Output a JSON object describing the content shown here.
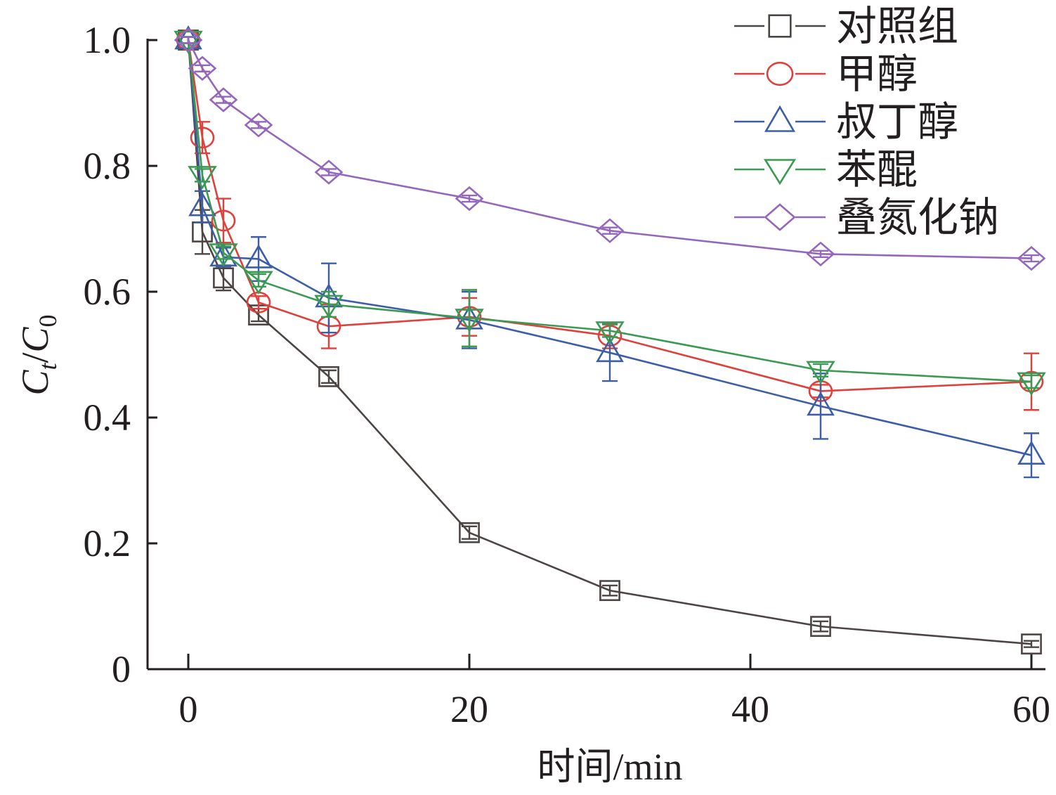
{
  "chart_data": {
    "type": "line",
    "title": "",
    "xlabel": "时间/min",
    "ylabel": {
      "c": "C",
      "t": "t",
      "slash": "/",
      "c0": "C",
      "zero": "0"
    },
    "xlim": [
      -3,
      61
    ],
    "ylim": [
      0,
      1.0
    ],
    "xticks": [
      0,
      20,
      40,
      60
    ],
    "xtick_labels": [
      "0",
      "20",
      "40",
      "60"
    ],
    "yticks": [
      0,
      0.2,
      0.4,
      0.6,
      0.8,
      1.0
    ],
    "ytick_labels": [
      "0",
      "0.2",
      "0.4",
      "0.6",
      "0.8",
      "1.0"
    ],
    "legend_position": "top-right",
    "x": [
      0,
      1,
      2.5,
      5,
      10,
      20,
      30,
      45,
      60
    ],
    "series": [
      {
        "name": "对照组",
        "color": "#4d4544",
        "marker": "square",
        "values": [
          1.0,
          0.695,
          0.622,
          0.563,
          0.465,
          0.217,
          0.125,
          0.068,
          0.04
        ],
        "errors": [
          0.005,
          0.035,
          0.02,
          0.01,
          0.01,
          0.01,
          0.008,
          0.008,
          0.005
        ]
      },
      {
        "name": "甲醇",
        "color": "#e0403c",
        "marker": "circle",
        "values": [
          1.0,
          0.845,
          0.713,
          0.583,
          0.545,
          0.56,
          0.53,
          0.442,
          0.457
        ],
        "errors": [
          0.005,
          0.025,
          0.035,
          0.01,
          0.035,
          0.03,
          0.02,
          0.01,
          0.045
        ]
      },
      {
        "name": "叔丁醇",
        "color": "#3c5ea8",
        "marker": "triangle-up",
        "values": [
          1.0,
          0.735,
          0.655,
          0.652,
          0.59,
          0.555,
          0.503,
          0.418,
          0.34
        ],
        "errors": [
          0.005,
          0.025,
          0.015,
          0.035,
          0.055,
          0.045,
          0.045,
          0.052,
          0.035
        ]
      },
      {
        "name": "苯醌",
        "color": "#3a9a52",
        "marker": "triangle-down",
        "values": [
          1.0,
          0.785,
          0.662,
          0.618,
          0.58,
          0.558,
          0.538,
          0.475,
          0.457
        ],
        "errors": [
          0.005,
          0.01,
          0.01,
          0.01,
          0.02,
          0.045,
          0.01,
          0.01,
          0.01
        ]
      },
      {
        "name": "叠氮化钠",
        "color": "#9467bd",
        "marker": "diamond",
        "values": [
          1.0,
          0.955,
          0.905,
          0.865,
          0.79,
          0.748,
          0.697,
          0.66,
          0.653
        ],
        "errors": [
          0.005,
          0.005,
          0.005,
          0.005,
          0.005,
          0.005,
          0.005,
          0.005,
          0.005
        ]
      }
    ]
  }
}
